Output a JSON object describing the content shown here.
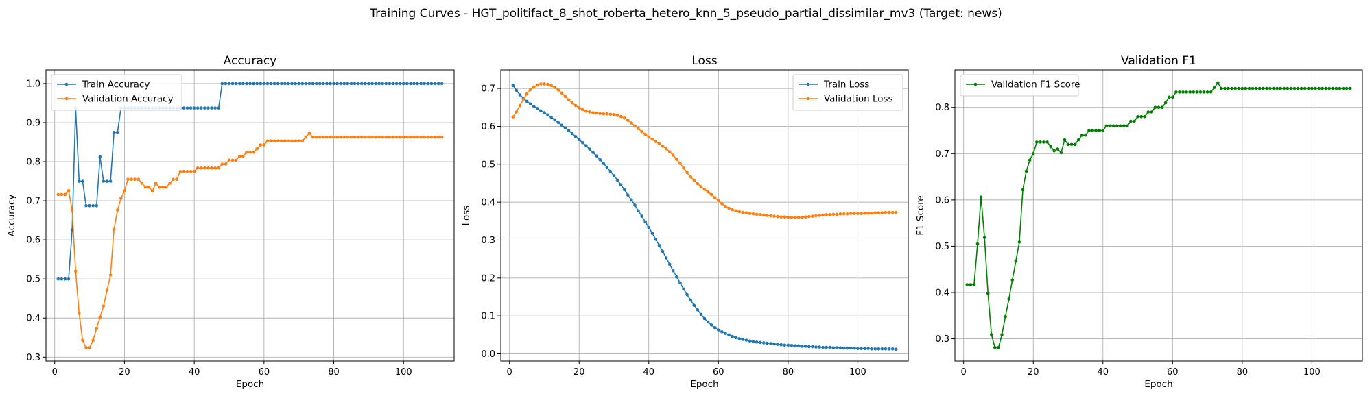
{
  "figure": {
    "suptitle": "Training Curves - HGT_politifact_8_shot_roberta_hetero_knn_5_pseudo_partial_dissimilar_mv3 (Target: news)"
  },
  "chart_data": [
    {
      "type": "line",
      "title": "Accuracy",
      "xlabel": "Epoch",
      "ylabel": "Accuracy",
      "xlim": [
        -2.5,
        114.5
      ],
      "ylim": [
        0.29,
        1.035
      ],
      "xticks": [
        0,
        20,
        40,
        60,
        80,
        100
      ],
      "yticks": [
        0.3,
        0.4,
        0.5,
        0.6,
        0.7,
        0.8,
        0.9,
        1.0
      ],
      "ytick_labels": [
        "0.3",
        "0.4",
        "0.5",
        "0.6",
        "0.7",
        "0.8",
        "0.9",
        "1.0"
      ],
      "grid": true,
      "legend_position": "upper-left",
      "series": [
        {
          "name": "Train Accuracy",
          "color": "#1f77b4",
          "x_start": 1,
          "values": [
            0.5,
            0.5,
            0.5,
            0.5,
            0.625,
            0.9375,
            0.75,
            0.75,
            0.6875,
            0.6875,
            0.6875,
            0.6875,
            0.8125,
            0.75,
            0.75,
            0.75,
            0.875,
            0.875,
            0.9375,
            0.9375,
            0.9375,
            0.9375,
            0.9375,
            0.9375,
            0.9375,
            0.9375,
            0.9375,
            0.9375,
            0.9375,
            0.9375,
            0.9375,
            0.9375,
            0.9375,
            0.9375,
            0.9375,
            0.9375,
            0.9375,
            0.9375,
            0.9375,
            0.9375,
            0.9375,
            0.9375,
            0.9375,
            0.9375,
            0.9375,
            0.9375,
            0.9375,
            1.0,
            1.0,
            1.0,
            1.0,
            1.0,
            1.0,
            1.0,
            1.0,
            1.0,
            1.0,
            1.0,
            1.0,
            1.0,
            1.0,
            1.0,
            1.0,
            1.0,
            1.0,
            1.0,
            1.0,
            1.0,
            1.0,
            1.0,
            1.0,
            1.0,
            1.0,
            1.0,
            1.0,
            1.0,
            1.0,
            1.0,
            1.0,
            1.0,
            1.0,
            1.0,
            1.0,
            1.0,
            1.0,
            1.0,
            1.0,
            1.0,
            1.0,
            1.0,
            1.0,
            1.0,
            1.0,
            1.0,
            1.0,
            1.0,
            1.0,
            1.0,
            1.0,
            1.0,
            1.0,
            1.0,
            1.0,
            1.0,
            1.0,
            1.0,
            1.0,
            1.0,
            1.0,
            1.0,
            1.0
          ]
        },
        {
          "name": "Validation Accuracy",
          "color": "#ff7f0e",
          "x_start": 1,
          "values": [
            0.716,
            0.716,
            0.716,
            0.726,
            0.676,
            0.52,
            0.412,
            0.343,
            0.324,
            0.324,
            0.343,
            0.373,
            0.402,
            0.431,
            0.471,
            0.51,
            0.627,
            0.676,
            0.706,
            0.725,
            0.755,
            0.755,
            0.755,
            0.755,
            0.745,
            0.735,
            0.735,
            0.725,
            0.745,
            0.735,
            0.735,
            0.735,
            0.745,
            0.755,
            0.755,
            0.775,
            0.775,
            0.775,
            0.775,
            0.775,
            0.784,
            0.784,
            0.784,
            0.784,
            0.784,
            0.784,
            0.784,
            0.794,
            0.794,
            0.804,
            0.804,
            0.804,
            0.814,
            0.814,
            0.824,
            0.824,
            0.824,
            0.833,
            0.843,
            0.843,
            0.853,
            0.853,
            0.853,
            0.853,
            0.853,
            0.853,
            0.853,
            0.853,
            0.853,
            0.853,
            0.853,
            0.863,
            0.873,
            0.863,
            0.863,
            0.863,
            0.863,
            0.863,
            0.863,
            0.863,
            0.863,
            0.863,
            0.863,
            0.863,
            0.863,
            0.863,
            0.863,
            0.863,
            0.863,
            0.863,
            0.863,
            0.863,
            0.863,
            0.863,
            0.863,
            0.863,
            0.863,
            0.863,
            0.863,
            0.863,
            0.863,
            0.863,
            0.863,
            0.863,
            0.863,
            0.863,
            0.863,
            0.863,
            0.863,
            0.863,
            0.863
          ]
        }
      ]
    },
    {
      "type": "line",
      "title": "Loss",
      "xlabel": "Epoch",
      "ylabel": "Loss",
      "xlim": [
        -2.5,
        114.5
      ],
      "ylim": [
        -0.019,
        0.749
      ],
      "xticks": [
        0,
        20,
        40,
        60,
        80,
        100
      ],
      "yticks": [
        0.0,
        0.1,
        0.2,
        0.3,
        0.4,
        0.5,
        0.6,
        0.7
      ],
      "ytick_labels": [
        "0.0",
        "0.1",
        "0.2",
        "0.3",
        "0.4",
        "0.5",
        "0.6",
        "0.7"
      ],
      "grid": true,
      "legend_position": "upper-right",
      "series": [
        {
          "name": "Train Loss",
          "color": "#1f77b4",
          "x_start": 1,
          "values": [
            0.708,
            0.695,
            0.683,
            0.674,
            0.666,
            0.659,
            0.653,
            0.647,
            0.641,
            0.636,
            0.63,
            0.624,
            0.617,
            0.61,
            0.603,
            0.596,
            0.589,
            0.581,
            0.573,
            0.565,
            0.557,
            0.549,
            0.54,
            0.531,
            0.522,
            0.512,
            0.502,
            0.492,
            0.481,
            0.47,
            0.458,
            0.446,
            0.433,
            0.419,
            0.406,
            0.392,
            0.377,
            0.363,
            0.348,
            0.333,
            0.318,
            0.302,
            0.286,
            0.27,
            0.253,
            0.236,
            0.219,
            0.203,
            0.187,
            0.171,
            0.156,
            0.142,
            0.128,
            0.116,
            0.104,
            0.093,
            0.084,
            0.076,
            0.069,
            0.063,
            0.058,
            0.054,
            0.05,
            0.046,
            0.043,
            0.04,
            0.038,
            0.036,
            0.034,
            0.032,
            0.031,
            0.03,
            0.029,
            0.028,
            0.027,
            0.026,
            0.025,
            0.024,
            0.023,
            0.023,
            0.022,
            0.021,
            0.021,
            0.02,
            0.02,
            0.019,
            0.019,
            0.018,
            0.018,
            0.017,
            0.017,
            0.017,
            0.016,
            0.016,
            0.016,
            0.015,
            0.015,
            0.015,
            0.015,
            0.014,
            0.014,
            0.014,
            0.014,
            0.013,
            0.013,
            0.013,
            0.013,
            0.013,
            0.013,
            0.013,
            0.012
          ]
        },
        {
          "name": "Validation Loss",
          "color": "#ff7f0e",
          "x_start": 1,
          "values": [
            0.625,
            0.638,
            0.655,
            0.671,
            0.686,
            0.697,
            0.704,
            0.709,
            0.712,
            0.712,
            0.711,
            0.708,
            0.703,
            0.696,
            0.688,
            0.679,
            0.67,
            0.662,
            0.655,
            0.649,
            0.644,
            0.64,
            0.638,
            0.636,
            0.635,
            0.634,
            0.633,
            0.633,
            0.632,
            0.631,
            0.629,
            0.626,
            0.622,
            0.616,
            0.609,
            0.601,
            0.594,
            0.586,
            0.579,
            0.572,
            0.566,
            0.56,
            0.554,
            0.548,
            0.541,
            0.533,
            0.524,
            0.513,
            0.502,
            0.49,
            0.478,
            0.467,
            0.458,
            0.449,
            0.441,
            0.434,
            0.427,
            0.42,
            0.412,
            0.404,
            0.396,
            0.389,
            0.384,
            0.38,
            0.377,
            0.375,
            0.373,
            0.372,
            0.37,
            0.369,
            0.368,
            0.367,
            0.366,
            0.365,
            0.364,
            0.363,
            0.362,
            0.361,
            0.361,
            0.36,
            0.36,
            0.36,
            0.36,
            0.36,
            0.361,
            0.362,
            0.363,
            0.364,
            0.365,
            0.366,
            0.367,
            0.367,
            0.368,
            0.368,
            0.369,
            0.369,
            0.369,
            0.37,
            0.37,
            0.37,
            0.37,
            0.371,
            0.371,
            0.371,
            0.372,
            0.372,
            0.372,
            0.373,
            0.373,
            0.373,
            0.373
          ]
        }
      ]
    },
    {
      "type": "line",
      "title": "Validation F1",
      "xlabel": "Epoch",
      "ylabel": "F1 Score",
      "xlim": [
        -2.5,
        114.5
      ],
      "ylim": [
        0.252,
        0.881
      ],
      "xticks": [
        0,
        20,
        40,
        60,
        80,
        100
      ],
      "yticks": [
        0.3,
        0.4,
        0.5,
        0.6,
        0.7,
        0.8
      ],
      "ytick_labels": [
        "0.3",
        "0.4",
        "0.5",
        "0.6",
        "0.7",
        "0.8"
      ],
      "grid": true,
      "legend_position": "upper-left",
      "series": [
        {
          "name": "Validation F1 Score",
          "color": "#008000",
          "x_start": 1,
          "values": [
            0.417,
            0.417,
            0.417,
            0.505,
            0.606,
            0.519,
            0.398,
            0.309,
            0.281,
            0.281,
            0.309,
            0.348,
            0.386,
            0.427,
            0.468,
            0.509,
            0.622,
            0.662,
            0.686,
            0.7,
            0.725,
            0.725,
            0.725,
            0.725,
            0.715,
            0.706,
            0.71,
            0.702,
            0.73,
            0.72,
            0.72,
            0.72,
            0.73,
            0.74,
            0.74,
            0.75,
            0.75,
            0.75,
            0.75,
            0.75,
            0.76,
            0.76,
            0.76,
            0.76,
            0.76,
            0.76,
            0.76,
            0.77,
            0.77,
            0.78,
            0.78,
            0.78,
            0.79,
            0.79,
            0.8,
            0.8,
            0.8,
            0.81,
            0.822,
            0.822,
            0.833,
            0.833,
            0.833,
            0.833,
            0.833,
            0.833,
            0.833,
            0.833,
            0.833,
            0.833,
            0.833,
            0.843,
            0.853,
            0.841,
            0.841,
            0.841,
            0.841,
            0.841,
            0.841,
            0.841,
            0.841,
            0.841,
            0.841,
            0.841,
            0.841,
            0.841,
            0.841,
            0.841,
            0.841,
            0.841,
            0.841,
            0.841,
            0.841,
            0.841,
            0.841,
            0.841,
            0.841,
            0.841,
            0.841,
            0.841,
            0.841,
            0.841,
            0.841,
            0.841,
            0.841,
            0.841,
            0.841,
            0.841,
            0.841,
            0.841,
            0.841
          ]
        }
      ]
    }
  ]
}
